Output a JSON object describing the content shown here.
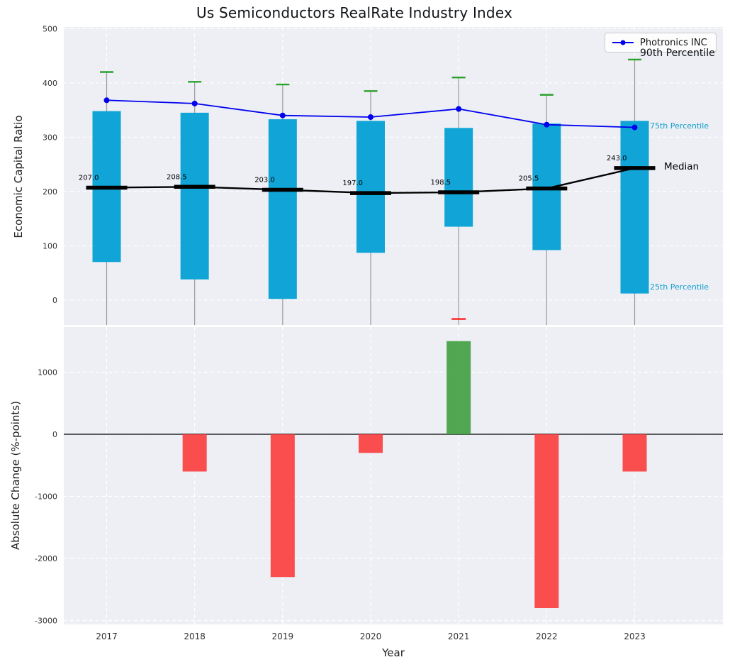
{
  "figure": {
    "title": "Us Semiconductors RealRate Industry Index",
    "xlabel": "Year",
    "legend": {
      "label": "Photronics INC"
    },
    "annotations": {
      "p90": "90th Percentile",
      "p75": "75th Percentile",
      "median": "Median",
      "p25": "25th Percentile"
    }
  },
  "chart_data": [
    {
      "type": "box-line",
      "title": "Us Semiconductors RealRate Industry Index",
      "ylabel": "Economic Capital Ratio",
      "ylim": [
        -46,
        503
      ],
      "yticks": [
        0,
        100,
        200,
        300,
        400,
        500
      ],
      "grid": true,
      "categories": [
        2017,
        2018,
        2019,
        2020,
        2021,
        2022,
        2023
      ],
      "box": {
        "q25": [
          70,
          38,
          2,
          87,
          135,
          92,
          12
        ],
        "q75": [
          348,
          345,
          333,
          330,
          317,
          325,
          330
        ],
        "p90": [
          420,
          402,
          397,
          385,
          410,
          378,
          443
        ],
        "whisker_low_cap": [
          null,
          null,
          null,
          null,
          -35,
          null,
          null
        ],
        "median": [
          207.0,
          208.5,
          203.0,
          197.0,
          198.5,
          205.5,
          243.0
        ]
      },
      "series": [
        {
          "name": "Photronics INC",
          "type": "line",
          "values": [
            368,
            362,
            340,
            337,
            352,
            323,
            318
          ]
        }
      ],
      "colors": {
        "box": "#10a5d6",
        "cap_high": "#2ca02c",
        "cap_low": "#ff1f1f",
        "whisker": "#999999",
        "median": "#000000",
        "line": "#0000ee",
        "panel": "#edeff5",
        "grid": "#ffffff",
        "tick": "#333333",
        "percentile_text": "#169fce"
      },
      "legend_position": "upper right"
    },
    {
      "type": "bar",
      "ylabel": "Absolute Change (%-points)",
      "xlabel": "Year",
      "ylim": [
        -3063,
        1726
      ],
      "yticks": [
        -3000,
        -2000,
        -1000,
        0,
        1000
      ],
      "grid": true,
      "categories": [
        2017,
        2018,
        2019,
        2020,
        2021,
        2022,
        2023
      ],
      "values": [
        0,
        -600,
        -2300,
        -300,
        1500,
        -2800,
        -600
      ],
      "colors": {
        "positive": "#3f9e3f",
        "negative": "#fb3b3b",
        "zero_line": "#000000",
        "panel": "#edeff5",
        "grid": "#ffffff",
        "tick": "#333333"
      }
    }
  ]
}
